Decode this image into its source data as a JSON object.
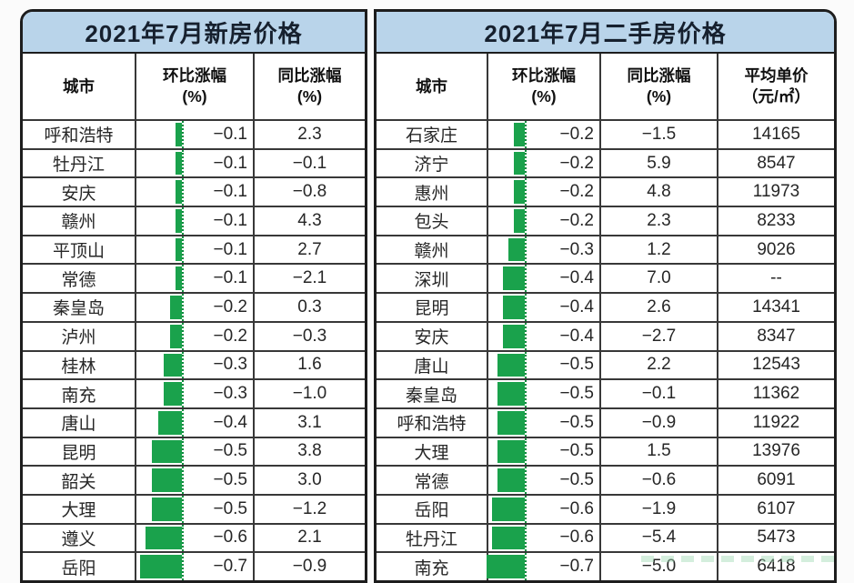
{
  "style": {
    "bar_color": "#1aa24c",
    "bar_axis_color": "#0c8c3e",
    "header_bg": "#b9d4ea",
    "title_color": "#16202e",
    "grid_color": "#383838"
  },
  "chart_data": [
    {
      "type": "table",
      "title": "2021年7月新房价格",
      "columns": [
        {
          "line1": "城市",
          "line2": ""
        },
        {
          "line1": "环比涨幅",
          "line2": "(%)"
        },
        {
          "line1": "同比涨幅",
          "line2": "(%)"
        }
      ],
      "bar_column": "环比涨幅(%)",
      "bar_note": "green negative data bars anchored to dotted axis, growing leftward",
      "rows": [
        [
          "呼和浩特",
          "−0.1",
          "2.3"
        ],
        [
          "牡丹江",
          "−0.1",
          "−0.1"
        ],
        [
          "安庆",
          "−0.1",
          "−0.8"
        ],
        [
          "赣州",
          "−0.1",
          "4.3"
        ],
        [
          "平顶山",
          "−0.1",
          "2.7"
        ],
        [
          "常德",
          "−0.1",
          "−2.1"
        ],
        [
          "秦皇岛",
          "−0.2",
          "0.3"
        ],
        [
          "泸州",
          "−0.2",
          "−0.3"
        ],
        [
          "桂林",
          "−0.3",
          "1.6"
        ],
        [
          "南充",
          "−0.3",
          "−1.0"
        ],
        [
          "唐山",
          "−0.4",
          "3.1"
        ],
        [
          "昆明",
          "−0.5",
          "3.8"
        ],
        [
          "韶关",
          "−0.5",
          "3.0"
        ],
        [
          "大理",
          "−0.5",
          "−1.2"
        ],
        [
          "遵义",
          "−0.6",
          "2.1"
        ],
        [
          "岳阳",
          "−0.7",
          "−0.9"
        ]
      ]
    },
    {
      "type": "table",
      "title": "2021年7月二手房价格",
      "columns": [
        {
          "line1": "城市",
          "line2": ""
        },
        {
          "line1": "环比涨幅",
          "line2": "(%)"
        },
        {
          "line1": "同比涨幅",
          "line2": "(%)"
        },
        {
          "line1": "平均单价",
          "line2": "（元/㎡）"
        }
      ],
      "bar_column": "环比涨幅(%)",
      "bar_note": "green negative data bars anchored to dotted axis, growing leftward",
      "rows": [
        [
          "石家庄",
          "−0.2",
          "−1.5",
          "14165"
        ],
        [
          "济宁",
          "−0.2",
          "5.9",
          "8547"
        ],
        [
          "惠州",
          "−0.2",
          "4.8",
          "11973"
        ],
        [
          "包头",
          "−0.2",
          "2.3",
          "8233"
        ],
        [
          "赣州",
          "−0.3",
          "1.2",
          "9026"
        ],
        [
          "深圳",
          "−0.4",
          "7.0",
          "--"
        ],
        [
          "昆明",
          "−0.4",
          "2.6",
          "14341"
        ],
        [
          "安庆",
          "−0.4",
          "−2.7",
          "8347"
        ],
        [
          "唐山",
          "−0.5",
          "2.2",
          "12543"
        ],
        [
          "秦皇岛",
          "−0.5",
          "−0.1",
          "11362"
        ],
        [
          "呼和浩特",
          "−0.5",
          "−0.9",
          "11922"
        ],
        [
          "大理",
          "−0.5",
          "1.5",
          "13976"
        ],
        [
          "常德",
          "−0.5",
          "−0.6",
          "6091"
        ],
        [
          "岳阳",
          "−0.6",
          "−1.9",
          "6107"
        ],
        [
          "牡丹江",
          "−0.6",
          "−5.4",
          "5473"
        ],
        [
          "南充",
          "−0.7",
          "−5.0",
          "6418"
        ]
      ]
    }
  ]
}
